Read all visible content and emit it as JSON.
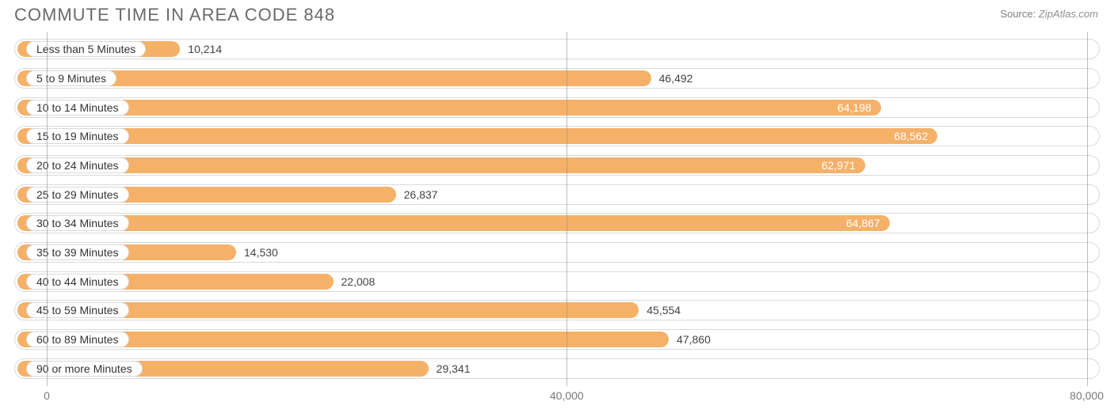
{
  "title": "COMMUTE TIME IN AREA CODE 848",
  "source_prefix": "Source:",
  "source_name": "ZipAtlas.com",
  "chart": {
    "type": "bar-horizontal",
    "xmin": -2500,
    "xmax": 81000,
    "bar_fill_color": "#f5b168",
    "track_border_color": "#d9d9d9",
    "pill_bg": "#ffffff",
    "pill_text_color": "#333333",
    "value_text_outside_color": "#444444",
    "value_text_inside_color": "#ffffff",
    "gridline_color": "#888888",
    "label_fontsize": 14,
    "title_fontsize": 22,
    "title_color": "#6a6a6a",
    "inside_label_threshold": 60000,
    "categories": [
      {
        "label": "Less than 5 Minutes",
        "value": 10214,
        "display": "10,214"
      },
      {
        "label": "5 to 9 Minutes",
        "value": 46492,
        "display": "46,492"
      },
      {
        "label": "10 to 14 Minutes",
        "value": 64198,
        "display": "64,198"
      },
      {
        "label": "15 to 19 Minutes",
        "value": 68562,
        "display": "68,562"
      },
      {
        "label": "20 to 24 Minutes",
        "value": 62971,
        "display": "62,971"
      },
      {
        "label": "25 to 29 Minutes",
        "value": 26837,
        "display": "26,837"
      },
      {
        "label": "30 to 34 Minutes",
        "value": 64867,
        "display": "64,867"
      },
      {
        "label": "35 to 39 Minutes",
        "value": 14530,
        "display": "14,530"
      },
      {
        "label": "40 to 44 Minutes",
        "value": 22008,
        "display": "22,008"
      },
      {
        "label": "45 to 59 Minutes",
        "value": 45554,
        "display": "45,554"
      },
      {
        "label": "60 to 89 Minutes",
        "value": 47860,
        "display": "47,860"
      },
      {
        "label": "90 or more Minutes",
        "value": 29341,
        "display": "29,341"
      }
    ],
    "xticks": [
      {
        "value": 0,
        "label": "0"
      },
      {
        "value": 40000,
        "label": "40,000"
      },
      {
        "value": 80000,
        "label": "80,000"
      }
    ]
  }
}
